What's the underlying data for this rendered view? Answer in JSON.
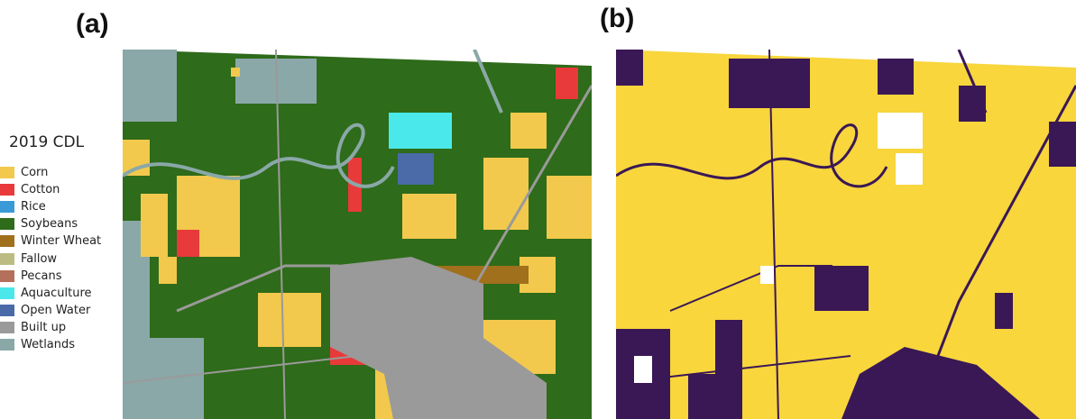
{
  "panels": {
    "a_label": "(a)",
    "b_label": "(b)"
  },
  "legend": {
    "title": "2019 CDL",
    "items": [
      {
        "label": "Corn",
        "color": "#f2c94c"
      },
      {
        "label": "Cotton",
        "color": "#e83a3a"
      },
      {
        "label": "Rice",
        "color": "#3a9ad8"
      },
      {
        "label": "Soybeans",
        "color": "#2e6b1a"
      },
      {
        "label": "Winter Wheat",
        "color": "#a0701c"
      },
      {
        "label": "Fallow",
        "color": "#bcbc82"
      },
      {
        "label": "Pecans",
        "color": "#b4705a"
      },
      {
        "label": "Aquaculture",
        "color": "#4ae8ea"
      },
      {
        "label": "Open Water",
        "color": "#4a6aa8"
      },
      {
        "label": "Built up",
        "color": "#9a9a9a"
      },
      {
        "label": "Wetlands",
        "color": "#8aa8a8"
      }
    ]
  },
  "map_b_colors": {
    "crop": "#f8d63c",
    "noncrop": "#3a1856",
    "nodata": "#ffffff"
  }
}
